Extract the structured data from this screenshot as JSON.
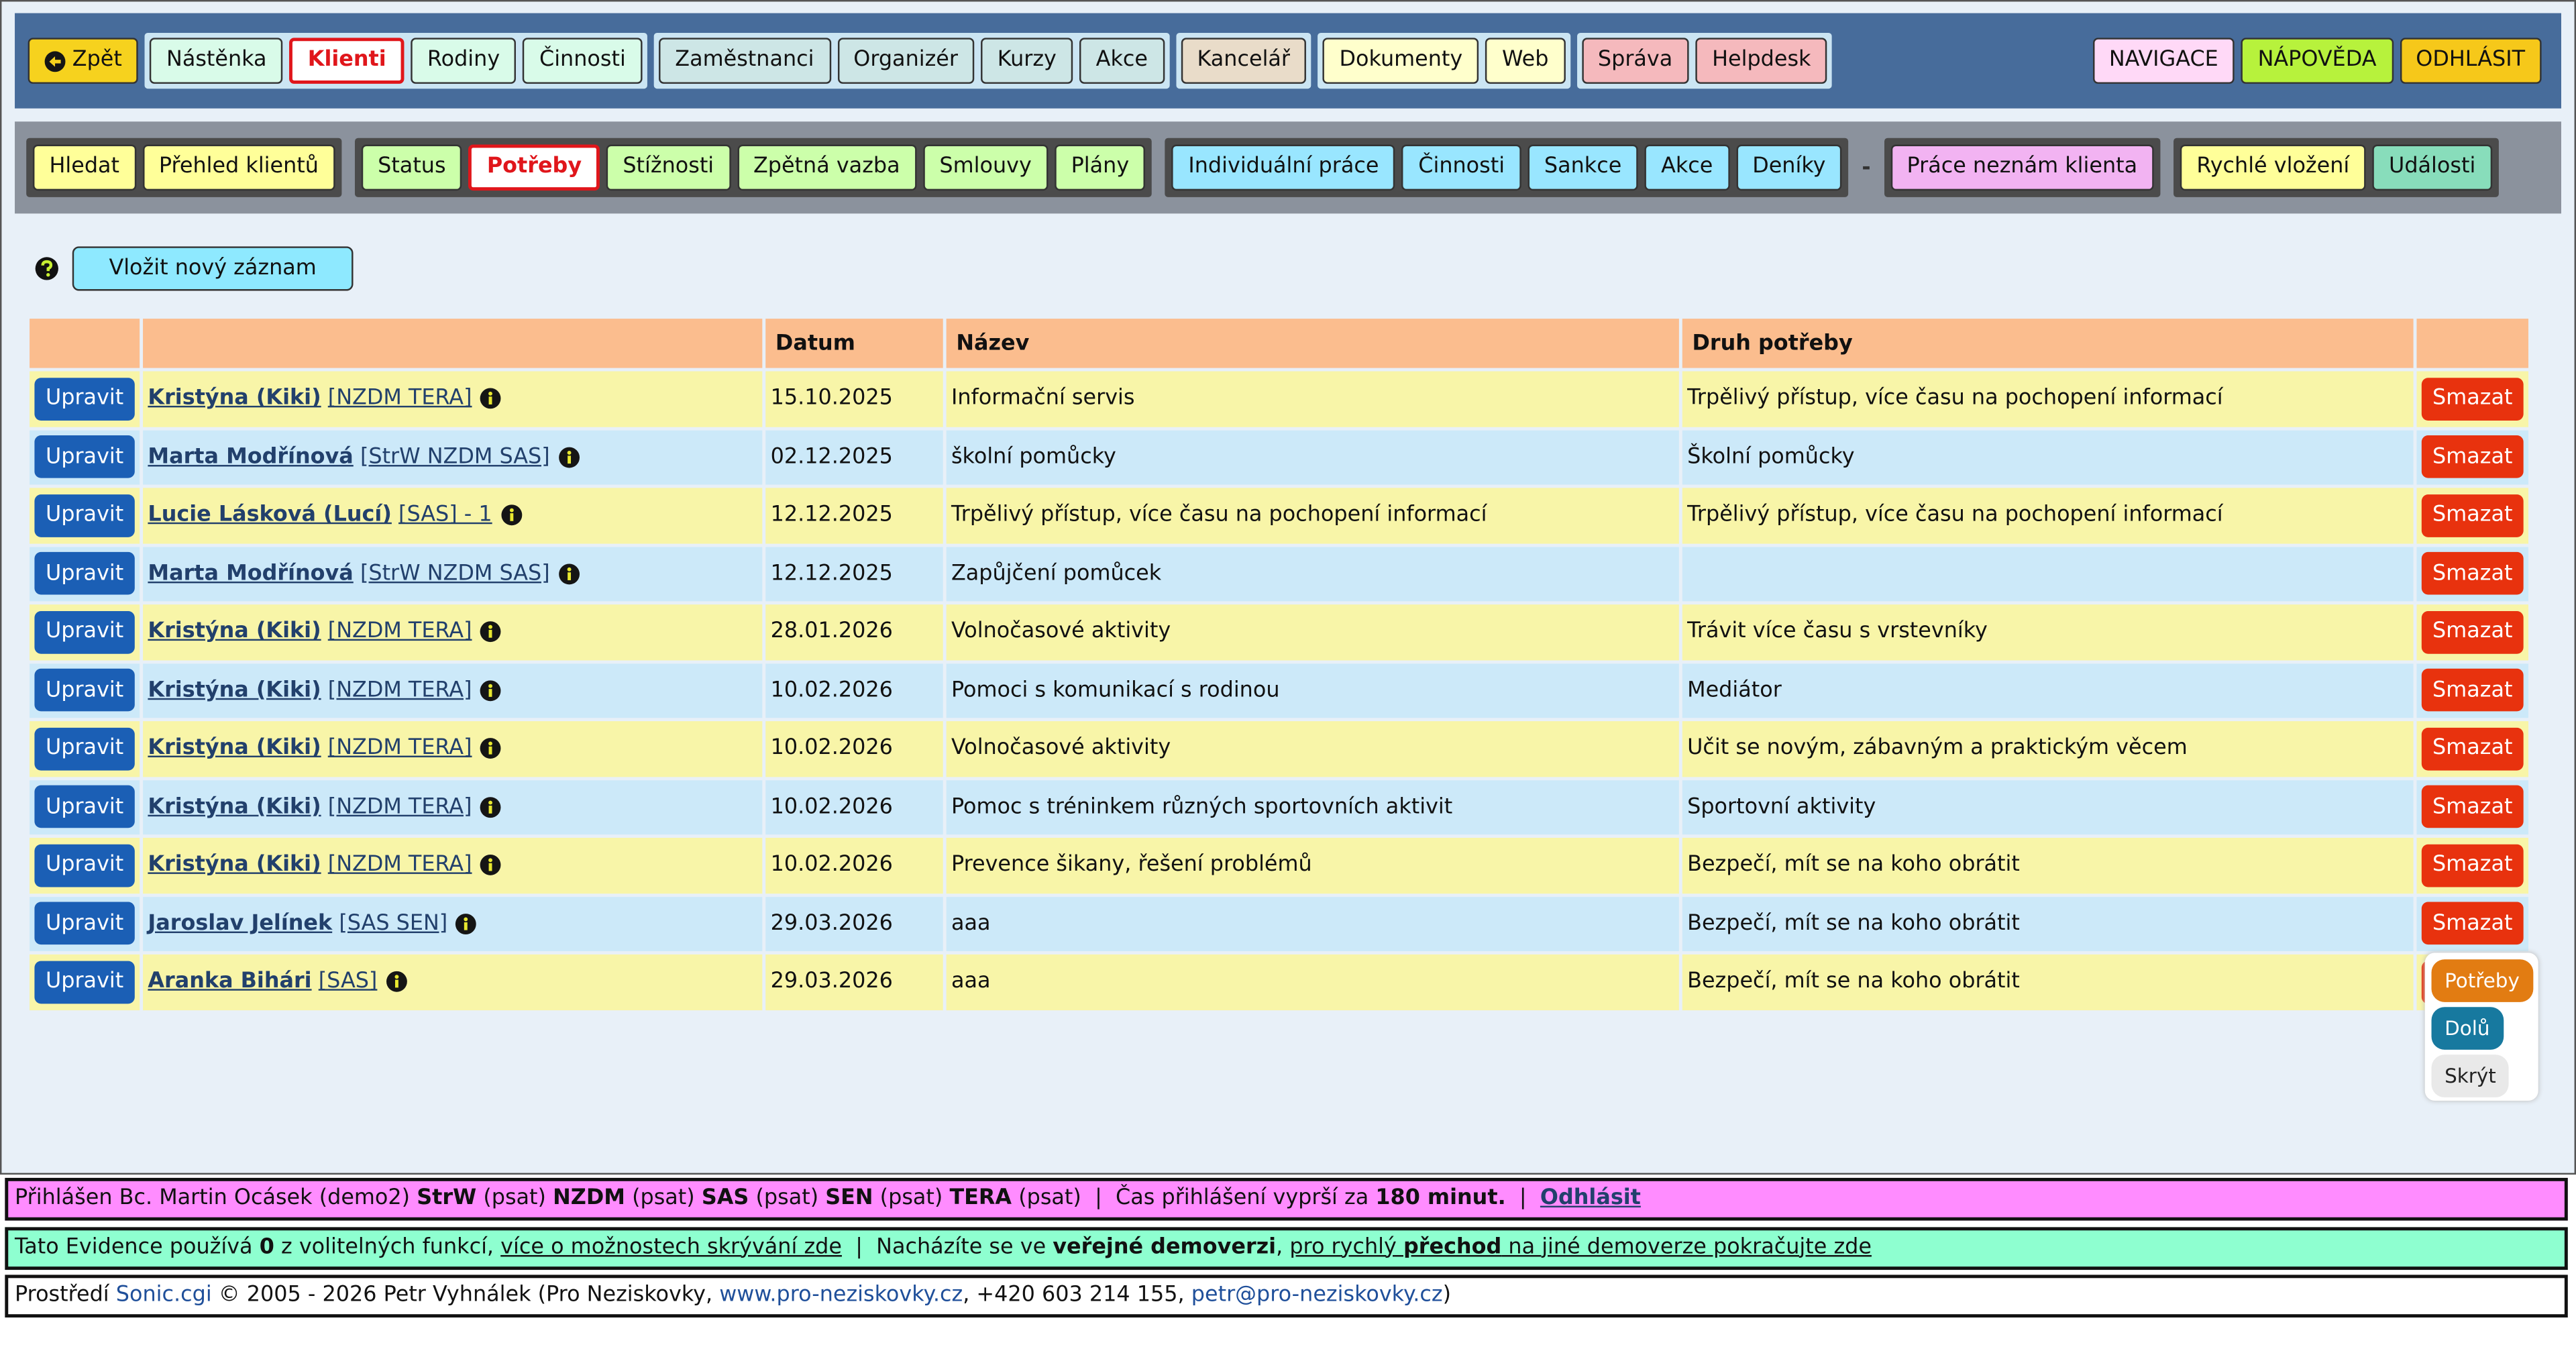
{
  "nav": {
    "back": {
      "label": "Zpět",
      "color": "#f6d21e"
    },
    "groups": [
      {
        "items": [
          {
            "label": "Nástěnka",
            "color": "#d9fbe9"
          },
          {
            "label": "Klienti",
            "color": "#ffffff",
            "active": true
          },
          {
            "label": "Rodiny",
            "color": "#d9fbe9"
          },
          {
            "label": "Činnosti",
            "color": "#d9fbe9"
          }
        ]
      },
      {
        "items": [
          {
            "label": "Zaměstnanci",
            "color": "#cde6e6"
          },
          {
            "label": "Organizér",
            "color": "#cde6e6"
          },
          {
            "label": "Kurzy",
            "color": "#cde6e6"
          },
          {
            "label": "Akce",
            "color": "#cde6e6"
          }
        ]
      },
      {
        "items": [
          {
            "label": "Kancelář",
            "color": "#e9dcc9"
          }
        ]
      },
      {
        "items": [
          {
            "label": "Dokumenty",
            "color": "#ffffcc"
          },
          {
            "label": "Web",
            "color": "#ffffcc"
          }
        ]
      },
      {
        "items": [
          {
            "label": "Správa",
            "color": "#f5b9bd"
          },
          {
            "label": "Helpdesk",
            "color": "#f5b9bd"
          }
        ]
      }
    ],
    "right": [
      {
        "label": "NAVIGACE",
        "color": "#ffd9f7"
      },
      {
        "label": "NÁPOVĚDA",
        "color": "#b7f23c"
      },
      {
        "label": "ODHLÁSIT",
        "color": "#f6c81a"
      }
    ]
  },
  "subnav": {
    "groups": [
      {
        "items": [
          {
            "label": "Hledat",
            "color": "#ffff99"
          },
          {
            "label": "Přehled klientů",
            "color": "#ffff99"
          }
        ]
      },
      {
        "items": [
          {
            "label": "Status",
            "color": "#ccffaa"
          },
          {
            "label": "Potřeby",
            "color": "#ffffff",
            "active": true
          },
          {
            "label": "Stížnosti",
            "color": "#ccffaa"
          },
          {
            "label": "Zpětná vazba",
            "color": "#ccffaa"
          },
          {
            "label": "Smlouvy",
            "color": "#ccffaa"
          },
          {
            "label": "Plány",
            "color": "#ccffaa"
          }
        ]
      },
      {
        "items": [
          {
            "label": "Individuální práce",
            "color": "#99e6ff"
          },
          {
            "label": "Činnosti",
            "color": "#99e6ff"
          },
          {
            "label": "Sankce",
            "color": "#99e6ff"
          },
          {
            "label": "Akce",
            "color": "#99e6ff"
          },
          {
            "label": "Deníky",
            "color": "#99e6ff"
          }
        ]
      },
      {
        "separator": "-"
      },
      {
        "items": [
          {
            "label": "Práce neznám klienta",
            "color": "#f2b3f2"
          }
        ]
      },
      {
        "items": [
          {
            "label": "Rychlé vložení",
            "color": "#ffff99"
          },
          {
            "label": "Události",
            "color": "#88ddbb"
          }
        ]
      }
    ]
  },
  "new_record": "Vložit nový záznam",
  "table": {
    "headers": [
      null,
      null,
      "Datum",
      "Název",
      "Druh potřeby",
      null
    ],
    "edit_label": "Upravit",
    "delete_label": "Smazat",
    "rows": [
      {
        "client": "Kristýna (Kiki)",
        "tags": "[NZDM TERA]",
        "date": "15.10.2025",
        "name": "Informační servis",
        "kind": "Trpělivý přístup, více času na pochopení informací"
      },
      {
        "client": "Marta Modřínová",
        "tags": "[StrW NZDM SAS]",
        "date": "02.12.2025",
        "name": "školní pomůcky",
        "kind": "Školní pomůcky"
      },
      {
        "client": "Lucie Lásková (Lucí)",
        "tags": "[SAS] - 1",
        "date": "12.12.2025",
        "name": "Trpělivý přístup, více času na pochopení informací",
        "kind": "Trpělivý přístup, více času na pochopení informací"
      },
      {
        "client": "Marta Modřínová",
        "tags": "[StrW NZDM SAS]",
        "date": "12.12.2025",
        "name": "Zapůjčení pomůcek",
        "kind": null
      },
      {
        "client": "Kristýna (Kiki)",
        "tags": "[NZDM TERA]",
        "date": "28.01.2026",
        "name": "Volnočasové aktivity",
        "kind": "Trávit více času s vrstevníky"
      },
      {
        "client": "Kristýna (Kiki)",
        "tags": "[NZDM TERA]",
        "date": "10.02.2026",
        "name": "Pomoci s komunikací s rodinou",
        "kind": "Mediátor"
      },
      {
        "client": "Kristýna (Kiki)",
        "tags": "[NZDM TERA]",
        "date": "10.02.2026",
        "name": "Volnočasové aktivity",
        "kind": "Učit se novým, zábavným a praktickým věcem"
      },
      {
        "client": "Kristýna (Kiki)",
        "tags": "[NZDM TERA]",
        "date": "10.02.2026",
        "name": "Pomoc s tréninkem různých sportovních aktivit",
        "kind": "Sportovní aktivity"
      },
      {
        "client": "Kristýna (Kiki)",
        "tags": "[NZDM TERA]",
        "date": "10.02.2026",
        "name": "Prevence šikany, řešení problémů",
        "kind": "Bezpečí, mít se na koho obrátit"
      },
      {
        "client": "Jaroslav Jelínek",
        "tags": "[SAS SEN]",
        "date": "29.03.2026",
        "name": "aaa",
        "kind": "Bezpečí, mít se na koho obrátit"
      },
      {
        "client": "Aranka Bihári",
        "tags": "[SAS]",
        "date": "29.03.2026",
        "name": "aaa",
        "kind": "Bezpečí, mít se na koho obrátit"
      }
    ]
  },
  "float_menu": [
    {
      "label": "Potřeby",
      "color": "#e27c12",
      "text_color": "#ffffff"
    },
    {
      "label": "Dolů",
      "color": "#17799f",
      "text_color": "#ffffff"
    },
    {
      "label": "Skrýt",
      "color": "#e9e9e9",
      "text_color": "#222222"
    }
  ],
  "footer": [
    {
      "color": "#ff8cff",
      "segments": [
        {
          "text": "Přihlášen Bc. Martin Ocásek (demo2) "
        },
        {
          "text": "StrW",
          "style": "b"
        },
        {
          "text": " (psat) "
        },
        {
          "text": "NZDM",
          "style": "b"
        },
        {
          "text": " (psat) "
        },
        {
          "text": "SAS",
          "style": "b"
        },
        {
          "text": " (psat) "
        },
        {
          "text": "SEN",
          "style": "b"
        },
        {
          "text": " (psat) "
        },
        {
          "text": "TERA",
          "style": "b"
        },
        {
          "text": " (psat)  |  Čas přihlášení vyprší za "
        },
        {
          "text": "180 minut.",
          "style": "b"
        },
        {
          "text": "  |  "
        },
        {
          "text": "Odhlásit",
          "style": "link-b"
        }
      ]
    },
    {
      "color": "#8effd0",
      "segments": [
        {
          "text": "Tato Evidence používá "
        },
        {
          "text": "0",
          "style": "b"
        },
        {
          "text": " z volitelných funkcí, "
        },
        {
          "text": "více o možnostech skrývání zde",
          "style": "u"
        },
        {
          "text": "  |  Nacházíte se ve "
        },
        {
          "text": "veřejné demoverzi",
          "style": "b"
        },
        {
          "text": ", "
        },
        {
          "text": "pro rychlý ",
          "style": "u"
        },
        {
          "text": "přechod",
          "style": "bu"
        },
        {
          "text": " na jiné demoverze pokračujte zde",
          "style": "u"
        }
      ]
    },
    {
      "color": "#ffffff",
      "segments": [
        {
          "text": "Prostředí "
        },
        {
          "text": "Sonic.cgi",
          "style": "blue"
        },
        {
          "text": " © 2005 - 2026 Petr Vyhnálek (Pro Neziskovky, "
        },
        {
          "text": "www.pro-neziskovky.cz",
          "style": "blue"
        },
        {
          "text": ", +420 603 214 155, "
        },
        {
          "text": "petr@pro-neziskovky.cz",
          "style": "blue"
        },
        {
          "text": ")"
        }
      ]
    }
  ]
}
